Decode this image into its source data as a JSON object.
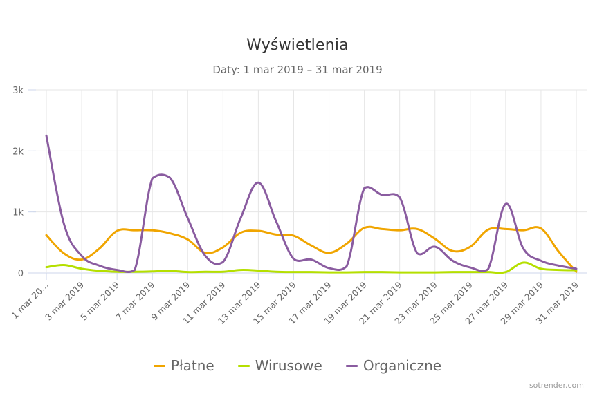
{
  "header": {
    "title": "Wyświetlenia",
    "subtitle": "Daty: 1 mar 2019 – 31 mar 2019"
  },
  "legend": [
    {
      "label": "Płatne",
      "color": "#f0a500"
    },
    {
      "label": "Wirusowe",
      "color": "#b5df00"
    },
    {
      "label": "Organiczne",
      "color": "#8a5ca0"
    }
  ],
  "credit": "sotrender.com",
  "chart_data": {
    "type": "line",
    "title": "Wyświetlenia",
    "subtitle": "Daty: 1 mar 2019 – 31 mar 2019",
    "xlabel": "",
    "ylabel": "",
    "ylim": [
      0,
      3000
    ],
    "y_ticks": [
      "0",
      "1k",
      "2k",
      "3k"
    ],
    "grid": true,
    "legend_position": "bottom",
    "x": [
      "1 mar 2019",
      "2 mar 2019",
      "3 mar 2019",
      "4 mar 2019",
      "5 mar 2019",
      "6 mar 2019",
      "7 mar 2019",
      "8 mar 2019",
      "9 mar 2019",
      "10 mar 2019",
      "11 mar 2019",
      "12 mar 2019",
      "13 mar 2019",
      "14 mar 2019",
      "15 mar 2019",
      "16 mar 2019",
      "17 mar 2019",
      "18 mar 2019",
      "19 mar 2019",
      "20 mar 2019",
      "21 mar 2019",
      "22 mar 2019",
      "23 mar 2019",
      "24 mar 2019",
      "25 mar 2019",
      "26 mar 2019",
      "27 mar 2019",
      "28 mar 2019",
      "29 mar 2019",
      "30 mar 2019",
      "31 mar 2019"
    ],
    "x_tick_labels": [
      "1 mar 20…",
      "3 mar 2019",
      "5 mar 2019",
      "7 mar 2019",
      "9 mar 2019",
      "11 mar 2019",
      "13 mar 2019",
      "15 mar 2019",
      "17 mar 2019",
      "19 mar 2019",
      "21 mar 2019",
      "23 mar 2019",
      "25 mar 2019",
      "27 mar 2019",
      "29 mar 2019",
      "31 mar 2019"
    ],
    "series": [
      {
        "name": "Płatne",
        "color": "#f0a500",
        "values": [
          620,
          320,
          220,
          400,
          690,
          700,
          700,
          650,
          550,
          330,
          420,
          660,
          690,
          630,
          610,
          450,
          330,
          480,
          740,
          720,
          700,
          720,
          560,
          360,
          430,
          710,
          720,
          700,
          730,
          350,
          20
        ]
      },
      {
        "name": "Wirusowe",
        "color": "#b5df00",
        "values": [
          95,
          130,
          70,
          35,
          20,
          20,
          25,
          35,
          15,
          20,
          20,
          50,
          40,
          20,
          15,
          15,
          10,
          10,
          15,
          15,
          10,
          10,
          10,
          15,
          15,
          15,
          15,
          170,
          70,
          50,
          45
        ]
      },
      {
        "name": "Organiczne",
        "color": "#8a5ca0",
        "values": [
          2250,
          800,
          280,
          120,
          50,
          50,
          1550,
          1560,
          900,
          280,
          180,
          900,
          1480,
          850,
          230,
          220,
          80,
          110,
          1390,
          1280,
          1240,
          320,
          430,
          200,
          90,
          60,
          1130,
          400,
          200,
          120,
          70
        ]
      }
    ]
  }
}
